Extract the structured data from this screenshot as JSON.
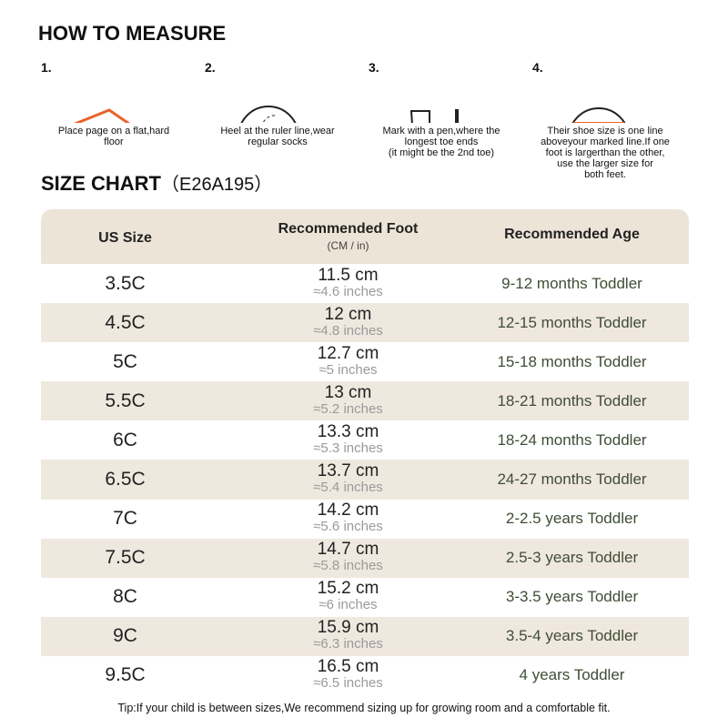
{
  "header": {
    "title": "HOW TO MEASURE"
  },
  "steps": [
    {
      "number": "1.",
      "caption": [
        "Place page on a flat,hard",
        "floor"
      ]
    },
    {
      "number": "2.",
      "caption": [
        "Heel at the ruler line,wear",
        "regular socks"
      ]
    },
    {
      "number": "3.",
      "caption": [
        "Mark with a pen,where the",
        "longest toe ends",
        "(it might be the 2nd toe)"
      ]
    },
    {
      "number": "4.",
      "caption": [
        "Their shoe size is one line",
        "aboveyour marked line.If one",
        "foot is largerthan the other,",
        "use the larger size for",
        "both feet."
      ]
    }
  ],
  "size_chart": {
    "title": "SIZE CHART",
    "code": "（E26A195）"
  },
  "table": {
    "columns": [
      {
        "title": "US Size"
      },
      {
        "title": "Recommended Foot",
        "subtitle": "(CM / in)"
      },
      {
        "title": "Recommended Age"
      }
    ],
    "rows": [
      [
        "3.5C",
        "11.5 cm",
        "≈4.6 inches",
        "9-12 months Toddler"
      ],
      [
        "4.5C",
        "12 cm",
        "≈4.8 inches",
        "12-15 months Toddler"
      ],
      [
        "5C",
        "12.7 cm",
        "≈5 inches",
        "15-18 months Toddler"
      ],
      [
        "5.5C",
        "13 cm",
        "≈5.2 inches",
        "18-21 months Toddler"
      ],
      [
        "6C",
        "13.3 cm",
        "≈5.3 inches",
        "18-24 months Toddler"
      ],
      [
        "6.5C",
        "13.7 cm",
        "≈5.4 inches",
        "24-27 months Toddler"
      ],
      [
        "7C",
        "14.2 cm",
        "≈5.6 inches",
        "2-2.5 years Toddler"
      ],
      [
        "7.5C",
        "14.7 cm",
        "≈5.8 inches",
        "2.5-3 years Toddler"
      ],
      [
        "8C",
        "15.2 cm",
        "≈6 inches",
        "3-3.5 years Toddler"
      ],
      [
        "9C",
        "15.9 cm",
        "≈6.3 inches",
        "3.5-4 years Toddler"
      ],
      [
        "9.5C",
        "16.5 cm",
        "≈6.5 inches",
        "4 years Toddler"
      ]
    ]
  },
  "footer": {
    "tip": "Tip:If your child is between sizes,We recommend sizing up for growing room and a comfortable fit."
  }
}
